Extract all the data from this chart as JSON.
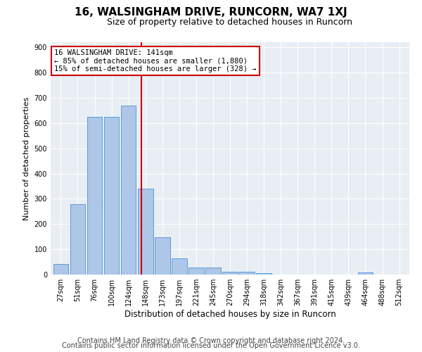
{
  "title": "16, WALSINGHAM DRIVE, RUNCORN, WA7 1XJ",
  "subtitle": "Size of property relative to detached houses in Runcorn",
  "xlabel": "Distribution of detached houses by size in Runcorn",
  "ylabel": "Number of detached properties",
  "bar_labels": [
    "27sqm",
    "51sqm",
    "76sqm",
    "100sqm",
    "124sqm",
    "148sqm",
    "173sqm",
    "197sqm",
    "221sqm",
    "245sqm",
    "270sqm",
    "294sqm",
    "318sqm",
    "342sqm",
    "367sqm",
    "391sqm",
    "415sqm",
    "439sqm",
    "464sqm",
    "488sqm",
    "512sqm"
  ],
  "bar_heights": [
    42,
    280,
    625,
    625,
    668,
    340,
    148,
    65,
    28,
    28,
    12,
    10,
    5,
    0,
    0,
    0,
    0,
    0,
    8,
    0,
    0
  ],
  "bar_color": "#aec6e8",
  "bar_edge_color": "#5a9fd4",
  "vline_x": 4.75,
  "vline_color": "#cc0000",
  "annotation_line1": "16 WALSINGHAM DRIVE: 141sqm",
  "annotation_line2": "← 85% of detached houses are smaller (1,880)",
  "annotation_line3": "15% of semi-detached houses are larger (328) →",
  "annotation_box_color": "#ffffff",
  "annotation_box_edge": "#cc0000",
  "ylim": [
    0,
    920
  ],
  "yticks": [
    0,
    100,
    200,
    300,
    400,
    500,
    600,
    700,
    800,
    900
  ],
  "plot_bg_color": "#e8eef4",
  "footer1": "Contains HM Land Registry data © Crown copyright and database right 2024.",
  "footer2": "Contains public sector information licensed under the Open Government Licence v3.0.",
  "title_fontsize": 11,
  "subtitle_fontsize": 9,
  "ylabel_fontsize": 8,
  "xlabel_fontsize": 8.5,
  "footer_fontsize": 7,
  "tick_fontsize": 7
}
